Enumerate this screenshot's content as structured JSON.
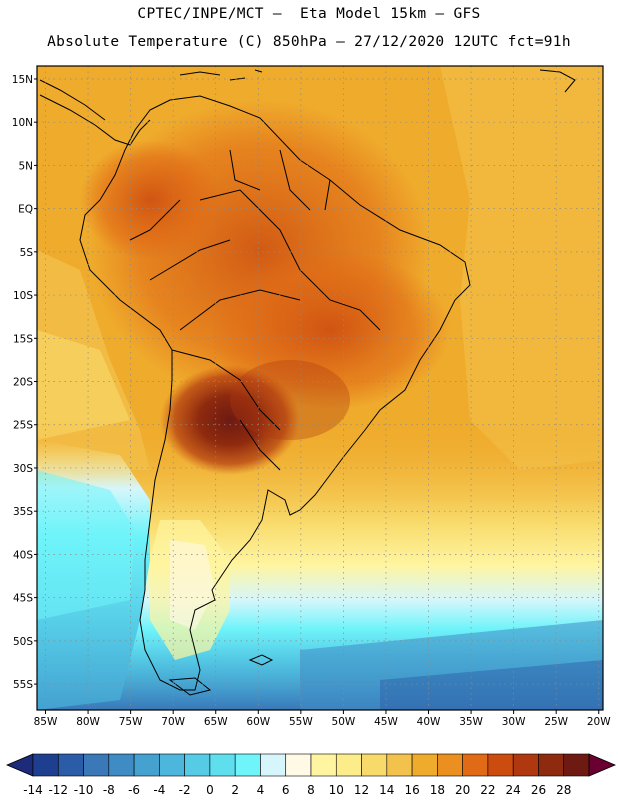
{
  "title": {
    "line1": "CPTEC/INPE/MCT –  Eta Model 15km – GFS",
    "line2": "Absolute Temperature (C) 850hPa – 27/12/2020 12UTC fct=91h"
  },
  "map": {
    "lat_labels": [
      "15N",
      "10N",
      "5N",
      "EQ",
      "5S",
      "10S",
      "15S",
      "20S",
      "25S",
      "30S",
      "35S",
      "40S",
      "45S",
      "50S",
      "55S"
    ],
    "lon_labels": [
      "85W",
      "80W",
      "75W",
      "70W",
      "65W",
      "60W",
      "55W",
      "50W",
      "45W",
      "40W",
      "35W",
      "30W",
      "25W",
      "20W"
    ],
    "lat_values": [
      15,
      10,
      5,
      0,
      -5,
      -10,
      -15,
      -20,
      -25,
      -30,
      -35,
      -40,
      -45,
      -50,
      -55
    ],
    "lon_values": [
      -85,
      -80,
      -75,
      -70,
      -65,
      -60,
      -55,
      -50,
      -45,
      -40,
      -35,
      -30,
      -25,
      -20
    ],
    "domain": {
      "lon_min": -86,
      "lon_max": -19.5,
      "lat_min": -58,
      "lat_max": 16.5
    }
  },
  "colorbar": {
    "labels": [
      "-14",
      "-12",
      "-10",
      "-8",
      "-6",
      "-4",
      "-2",
      "0",
      "2",
      "4",
      "6",
      "8",
      "10",
      "12",
      "14",
      "16",
      "18",
      "20",
      "22",
      "24",
      "26",
      "28"
    ],
    "colors": [
      "#1e3f8f",
      "#2a5ca7",
      "#3a78b8",
      "#3f8cc4",
      "#44a1d0",
      "#4db6dc",
      "#55cbe6",
      "#5fdeee",
      "#6ff4fa",
      "#d6f6fb",
      "#fff9e6",
      "#fff5a0",
      "#fcec8a",
      "#f8da6a",
      "#f3c24c",
      "#efab2c",
      "#ea8f20",
      "#e06a16",
      "#cc4c10",
      "#b03810",
      "#8e2a0e",
      "#6e1a12"
    ],
    "low_arrow_color": "#1e2a7a",
    "high_arrow_color": "#6a0032",
    "unit": "C"
  }
}
